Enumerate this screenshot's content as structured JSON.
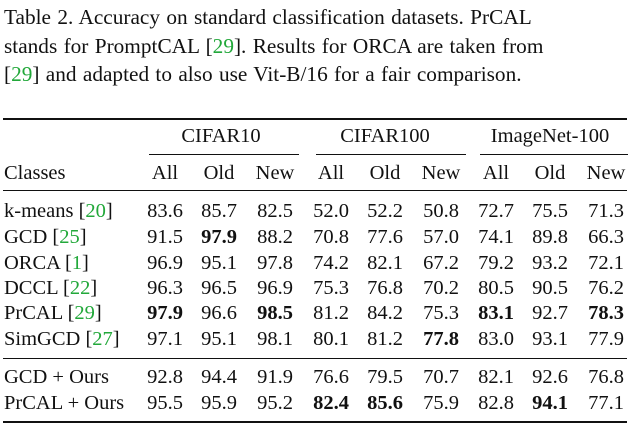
{
  "caption": {
    "l1": "Table 2.  Accuracy on standard classification datasets.  PrCAL",
    "l2a": "stands for PromptCAL [",
    "l2c": "29",
    "l2b": "].  Results for ORCA are taken from",
    "l3a": "[",
    "l3c": "29",
    "l3b": "] and adapted to also use Vit-B/16 for a fair comparison."
  },
  "table": {
    "groups": [
      "CIFAR10",
      "CIFAR100",
      "ImageNet-100"
    ],
    "row_header": "Classes",
    "subheaders": [
      "All",
      "Old",
      "New",
      "All",
      "Old",
      "New",
      "All",
      "Old",
      "New"
    ],
    "rows": [
      {
        "name": "k-means [",
        "cite": "20",
        "close": "]",
        "values": [
          "83.6",
          "85.7",
          "82.5",
          "52.0",
          "52.2",
          "50.8",
          "72.7",
          "75.5",
          "71.3"
        ],
        "bold": []
      },
      {
        "name": "GCD [",
        "cite": "25",
        "close": "]",
        "values": [
          "91.5",
          "97.9",
          "88.2",
          "70.8",
          "77.6",
          "57.0",
          "74.1",
          "89.8",
          "66.3"
        ],
        "bold": [
          1
        ]
      },
      {
        "name": "ORCA [",
        "cite": "1",
        "close": "]",
        "values": [
          "96.9",
          "95.1",
          "97.8",
          "74.2",
          "82.1",
          "67.2",
          "79.2",
          "93.2",
          "72.1"
        ],
        "bold": []
      },
      {
        "name": "DCCL [",
        "cite": "22",
        "close": "]",
        "values": [
          "96.3",
          "96.5",
          "96.9",
          "75.3",
          "76.8",
          "70.2",
          "80.5",
          "90.5",
          "76.2"
        ],
        "bold": []
      },
      {
        "name": "PrCAL [",
        "cite": "29",
        "close": "]",
        "values": [
          "97.9",
          "96.6",
          "98.5",
          "81.2",
          "84.2",
          "75.3",
          "83.1",
          "92.7",
          "78.3"
        ],
        "bold": [
          0,
          2,
          6,
          8
        ]
      },
      {
        "name": "SimGCD [",
        "cite": "27",
        "close": "]",
        "values": [
          "97.1",
          "95.1",
          "98.1",
          "80.1",
          "81.2",
          "77.8",
          "83.0",
          "93.1",
          "77.9"
        ],
        "bold": [
          5
        ]
      },
      {
        "name": "GCD + Ours",
        "cite": "",
        "close": "",
        "values": [
          "92.8",
          "94.4",
          "91.9",
          "76.6",
          "79.5",
          "70.7",
          "82.1",
          "92.6",
          "76.8"
        ],
        "bold": []
      },
      {
        "name": "PrCAL + Ours",
        "cite": "",
        "close": "",
        "values": [
          "95.5",
          "95.9",
          "95.2",
          "82.4",
          "85.6",
          "75.9",
          "82.8",
          "94.1",
          "77.1"
        ],
        "bold": [
          3,
          4,
          7
        ]
      }
    ]
  }
}
